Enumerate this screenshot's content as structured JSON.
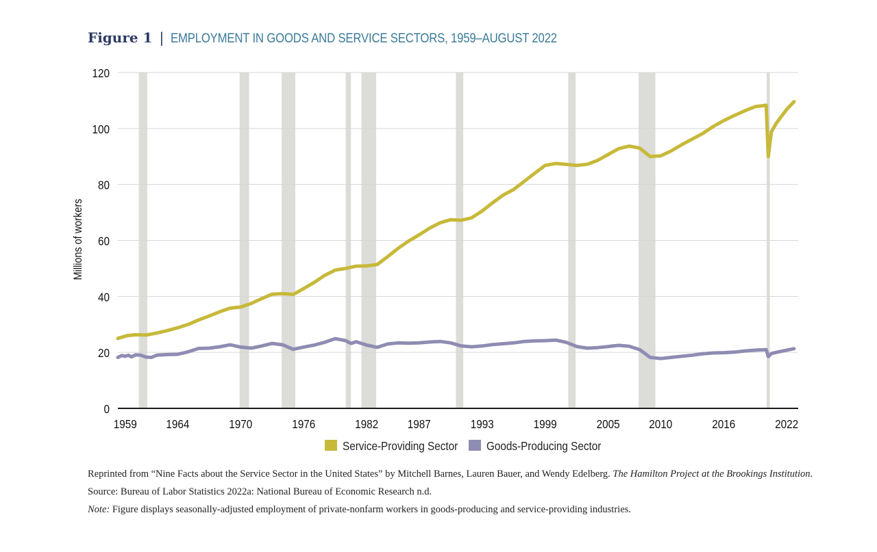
{
  "header": {
    "figure_label": "Figure 1",
    "separator": "|",
    "title": "EMPLOYMENT IN GOODS AND SERVICE SECTORS, 1959–AUGUST 2022"
  },
  "colors": {
    "service": "#c7b93a",
    "goods": "#8f8cb3",
    "recession": "#dcdcd8",
    "grid": "#d6d6d6",
    "axis": "#1a1a1a"
  },
  "chart_data": {
    "type": "line",
    "ylabel": "Millions of workers",
    "ylim": [
      0,
      120
    ],
    "yticks": [
      "0",
      "20",
      "40",
      "60",
      "80",
      "100",
      "120"
    ],
    "xlim": [
      1958.3,
      2023.1
    ],
    "xticks": [
      {
        "label": "1959",
        "year": 1959
      },
      {
        "label": "1964",
        "year": 1964
      },
      {
        "label": "1970",
        "year": 1970
      },
      {
        "label": "1976",
        "year": 1976
      },
      {
        "label": "1982",
        "year": 1982
      },
      {
        "label": "1987",
        "year": 1987
      },
      {
        "label": "1993",
        "year": 1993
      },
      {
        "label": "1999",
        "year": 1999
      },
      {
        "label": "2005",
        "year": 2005
      },
      {
        "label": "2010",
        "year": 2010
      },
      {
        "label": "2016",
        "year": 2016
      },
      {
        "label": "2022",
        "year": 2022
      }
    ],
    "grid": true,
    "legend_position": "bottom-center",
    "recessions": [
      [
        1960.3,
        1961.1
      ],
      [
        1969.9,
        1970.8
      ],
      [
        1973.9,
        1975.2
      ],
      [
        1980.0,
        1980.5
      ],
      [
        1981.5,
        1982.9
      ],
      [
        1990.5,
        1991.2
      ],
      [
        2001.2,
        2001.9
      ],
      [
        2007.9,
        2009.5
      ],
      [
        2020.1,
        2020.4
      ]
    ],
    "series": [
      {
        "name": "Service-Providing Sector",
        "color_key": "service",
        "points": [
          [
            1958.3,
            25.0
          ],
          [
            1959.2,
            26.0
          ],
          [
            1960.0,
            26.3
          ],
          [
            1961.0,
            26.2
          ],
          [
            1962.0,
            26.9
          ],
          [
            1963.0,
            27.8
          ],
          [
            1964.0,
            28.8
          ],
          [
            1965.0,
            30.0
          ],
          [
            1966.0,
            31.6
          ],
          [
            1967.0,
            33.0
          ],
          [
            1968.0,
            34.5
          ],
          [
            1969.0,
            35.8
          ],
          [
            1970.0,
            36.2
          ],
          [
            1971.0,
            37.5
          ],
          [
            1972.0,
            39.2
          ],
          [
            1973.0,
            40.8
          ],
          [
            1974.0,
            41.0
          ],
          [
            1975.0,
            40.7
          ],
          [
            1976.0,
            42.8
          ],
          [
            1977.0,
            45.0
          ],
          [
            1978.0,
            47.5
          ],
          [
            1979.0,
            49.4
          ],
          [
            1980.0,
            50.0
          ],
          [
            1981.0,
            50.8
          ],
          [
            1982.0,
            50.9
          ],
          [
            1983.0,
            51.4
          ],
          [
            1984.0,
            54.2
          ],
          [
            1985.0,
            57.2
          ],
          [
            1986.0,
            59.8
          ],
          [
            1987.0,
            62.0
          ],
          [
            1988.0,
            64.4
          ],
          [
            1989.0,
            66.3
          ],
          [
            1990.0,
            67.4
          ],
          [
            1991.0,
            67.2
          ],
          [
            1992.0,
            68.1
          ],
          [
            1993.0,
            70.5
          ],
          [
            1994.0,
            73.5
          ],
          [
            1995.0,
            76.2
          ],
          [
            1996.0,
            78.2
          ],
          [
            1997.0,
            81.1
          ],
          [
            1998.0,
            84.0
          ],
          [
            1999.0,
            86.8
          ],
          [
            2000.0,
            87.5
          ],
          [
            2001.0,
            87.2
          ],
          [
            2002.0,
            86.8
          ],
          [
            2003.0,
            87.2
          ],
          [
            2004.0,
            88.6
          ],
          [
            2005.0,
            90.7
          ],
          [
            2006.0,
            92.8
          ],
          [
            2007.0,
            93.7
          ],
          [
            2008.0,
            93.0
          ],
          [
            2009.0,
            90.0
          ],
          [
            2010.0,
            90.2
          ],
          [
            2011.0,
            92.0
          ],
          [
            2012.0,
            94.2
          ],
          [
            2013.0,
            96.2
          ],
          [
            2014.0,
            98.2
          ],
          [
            2015.0,
            100.7
          ],
          [
            2016.0,
            102.8
          ],
          [
            2017.0,
            104.6
          ],
          [
            2018.0,
            106.3
          ],
          [
            2019.0,
            107.8
          ],
          [
            2020.05,
            108.3
          ],
          [
            2020.25,
            90.0
          ],
          [
            2020.55,
            98.8
          ],
          [
            2021.0,
            101.8
          ],
          [
            2022.0,
            106.8
          ],
          [
            2022.7,
            109.6
          ]
        ]
      },
      {
        "name": "Goods-Producing Sector",
        "color_key": "goods",
        "points": [
          [
            1958.3,
            18.2
          ],
          [
            1958.7,
            18.9
          ],
          [
            1959.0,
            18.6
          ],
          [
            1959.3,
            19.0
          ],
          [
            1959.6,
            18.4
          ],
          [
            1960.0,
            19.1
          ],
          [
            1960.5,
            19.0
          ],
          [
            1961.0,
            18.3
          ],
          [
            1961.5,
            18.2
          ],
          [
            1962.0,
            19.0
          ],
          [
            1963.0,
            19.2
          ],
          [
            1964.0,
            19.3
          ],
          [
            1965.0,
            20.2
          ],
          [
            1966.0,
            21.4
          ],
          [
            1967.0,
            21.5
          ],
          [
            1968.0,
            22.0
          ],
          [
            1969.0,
            22.7
          ],
          [
            1970.0,
            21.9
          ],
          [
            1971.0,
            21.5
          ],
          [
            1972.0,
            22.3
          ],
          [
            1973.0,
            23.2
          ],
          [
            1974.0,
            22.7
          ],
          [
            1975.0,
            21.1
          ],
          [
            1976.0,
            21.9
          ],
          [
            1977.0,
            22.6
          ],
          [
            1978.0,
            23.6
          ],
          [
            1979.0,
            24.9
          ],
          [
            1980.0,
            24.2
          ],
          [
            1980.5,
            23.2
          ],
          [
            1981.0,
            23.8
          ],
          [
            1982.0,
            22.6
          ],
          [
            1983.0,
            21.8
          ],
          [
            1984.0,
            23.0
          ],
          [
            1985.0,
            23.4
          ],
          [
            1986.0,
            23.3
          ],
          [
            1987.0,
            23.4
          ],
          [
            1988.0,
            23.7
          ],
          [
            1989.0,
            23.9
          ],
          [
            1990.0,
            23.4
          ],
          [
            1991.0,
            22.3
          ],
          [
            1992.0,
            22.0
          ],
          [
            1993.0,
            22.3
          ],
          [
            1994.0,
            22.8
          ],
          [
            1995.0,
            23.1
          ],
          [
            1996.0,
            23.4
          ],
          [
            1997.0,
            23.9
          ],
          [
            1998.0,
            24.1
          ],
          [
            1999.0,
            24.2
          ],
          [
            2000.0,
            24.4
          ],
          [
            2001.0,
            23.6
          ],
          [
            2002.0,
            22.1
          ],
          [
            2003.0,
            21.5
          ],
          [
            2004.0,
            21.7
          ],
          [
            2005.0,
            22.1
          ],
          [
            2006.0,
            22.5
          ],
          [
            2007.0,
            22.2
          ],
          [
            2008.0,
            21.0
          ],
          [
            2009.0,
            18.2
          ],
          [
            2010.0,
            17.8
          ],
          [
            2011.0,
            18.2
          ],
          [
            2012.0,
            18.6
          ],
          [
            2013.0,
            19.0
          ],
          [
            2014.0,
            19.5
          ],
          [
            2015.0,
            19.8
          ],
          [
            2016.0,
            19.9
          ],
          [
            2017.0,
            20.1
          ],
          [
            2018.0,
            20.5
          ],
          [
            2019.0,
            20.8
          ],
          [
            2020.05,
            21.0
          ],
          [
            2020.25,
            18.5
          ],
          [
            2020.55,
            19.6
          ],
          [
            2021.0,
            20.0
          ],
          [
            2022.0,
            20.8
          ],
          [
            2022.7,
            21.3
          ]
        ]
      }
    ]
  },
  "notes": {
    "reprint_prefix": "Reprinted from “Nine Facts about the Service Sector in the United States” by Mitchell Barnes, Lauren Bauer, and Wendy Edelberg. ",
    "reprint_italic": "The Hamilton Project at the Brookings Institution",
    "reprint_suffix": ".",
    "source": "Source: Bureau of Labor Statistics 2022a: National Bureau of Economic Research n.d.",
    "note_label": "Note:",
    "note_text": " Figure displays seasonally-adjusted employment of private-nonfarm workers in goods-producing and service-providing industries."
  }
}
